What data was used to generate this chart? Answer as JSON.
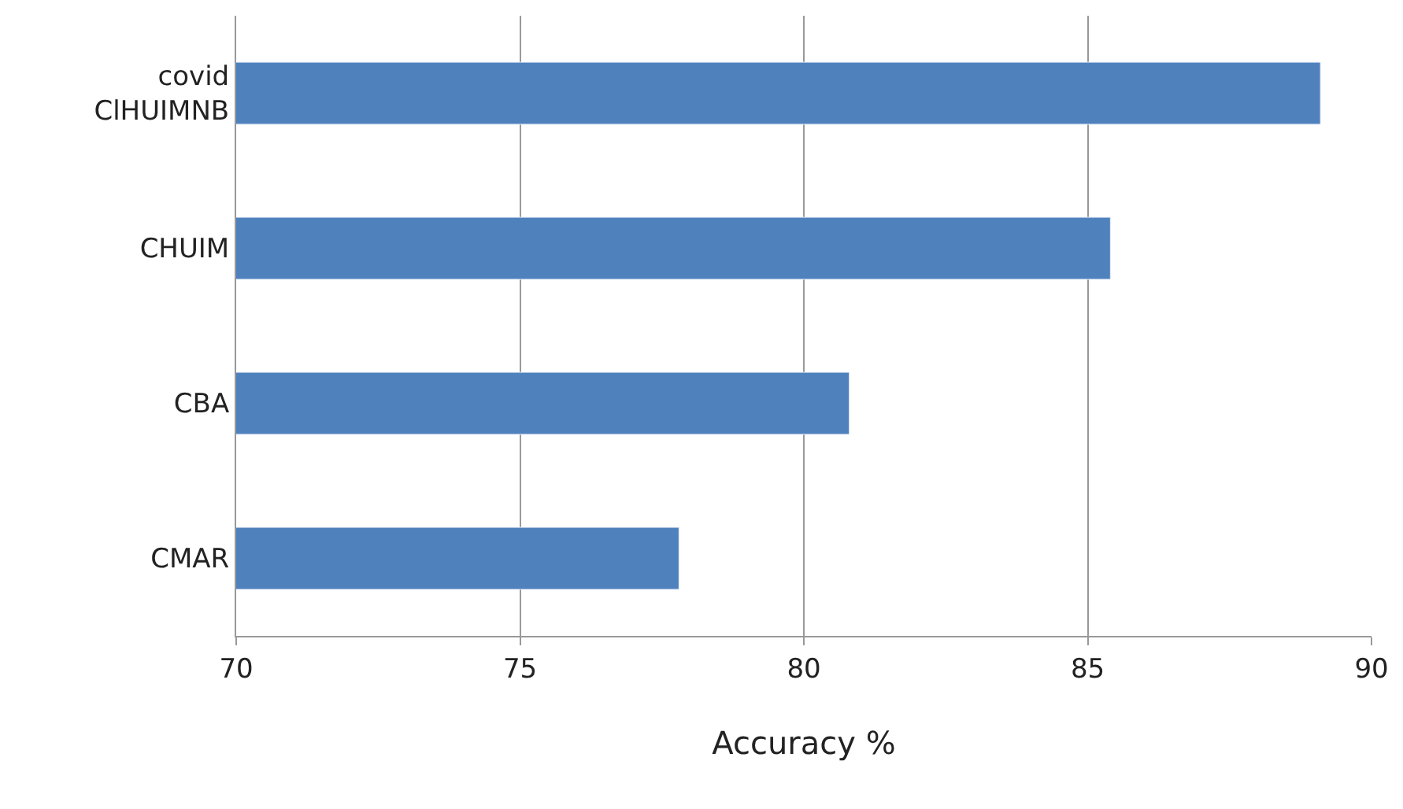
{
  "chart_data": {
    "type": "bar",
    "orientation": "horizontal",
    "xlabel": "Accuracy %",
    "categories": [
      "covid\nClHUIMNB",
      "CHUIM",
      "CBA",
      "CMAR"
    ],
    "values": [
      89.1,
      85.4,
      80.8,
      77.8
    ],
    "color": "#4f81bd",
    "xlim": [
      70,
      90
    ],
    "xticks": [
      70,
      75,
      80,
      85,
      90
    ],
    "grid": "x"
  }
}
